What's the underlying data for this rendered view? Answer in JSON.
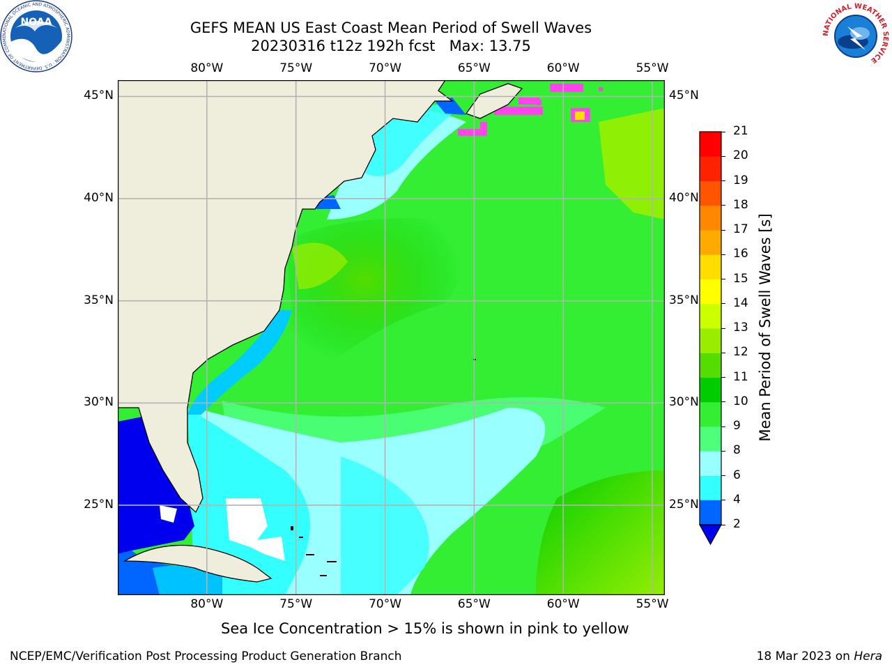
{
  "title": {
    "line1": "GEFS MEAN US East Coast Mean Period of Swell Waves",
    "line2": "20230316 t12z 192h fcst   Max: 13.75"
  },
  "logos": {
    "noaa": {
      "text": "NOAA",
      "ring_text": "NATIONAL OCEANIC AND ATMOSPHERIC ADMINISTRATION · U.S. DEPARTMENT OF COMMERCE"
    },
    "nws": {
      "ring_text": "NATIONAL WEATHER SERVICE"
    }
  },
  "map": {
    "lon_ticks": [
      "80°W",
      "75°W",
      "70°W",
      "65°W",
      "60°W",
      "55°W"
    ],
    "lat_ticks": [
      "45°N",
      "40°N",
      "35°N",
      "30°N",
      "25°N"
    ],
    "lon_range": [
      -85,
      -54.3
    ],
    "lat_range": [
      20.6,
      45.8
    ],
    "grid": true,
    "land_color": "#efeedc",
    "missing_color": "#ffffff"
  },
  "colorbar": {
    "label": "Mean Period of Swell Waves [s]",
    "ticks": [
      "2",
      "4",
      "6",
      "8",
      "9",
      "10",
      "11",
      "12",
      "13",
      "14",
      "15",
      "16",
      "17",
      "18",
      "19",
      "20",
      "21"
    ],
    "colors": [
      "#0066ff",
      "#00ccff",
      "#33ffff",
      "#99ffff",
      "#4dff7a",
      "#33ee33",
      "#00cc00",
      "#55dd00",
      "#99ee00",
      "#ccff00",
      "#ffff00",
      "#ffdd00",
      "#ffaa00",
      "#ff8800",
      "#ff5500",
      "#ff2200",
      "#ff0000"
    ],
    "under_color": "#0000ee"
  },
  "annotation": "Sea Ice Concentration > 15% is shown in pink to yellow",
  "footer": {
    "left": "NCEP/EMC/Verification Post Processing Product Generation Branch",
    "date": "18 Mar 2023 on ",
    "machine": "Hera"
  }
}
